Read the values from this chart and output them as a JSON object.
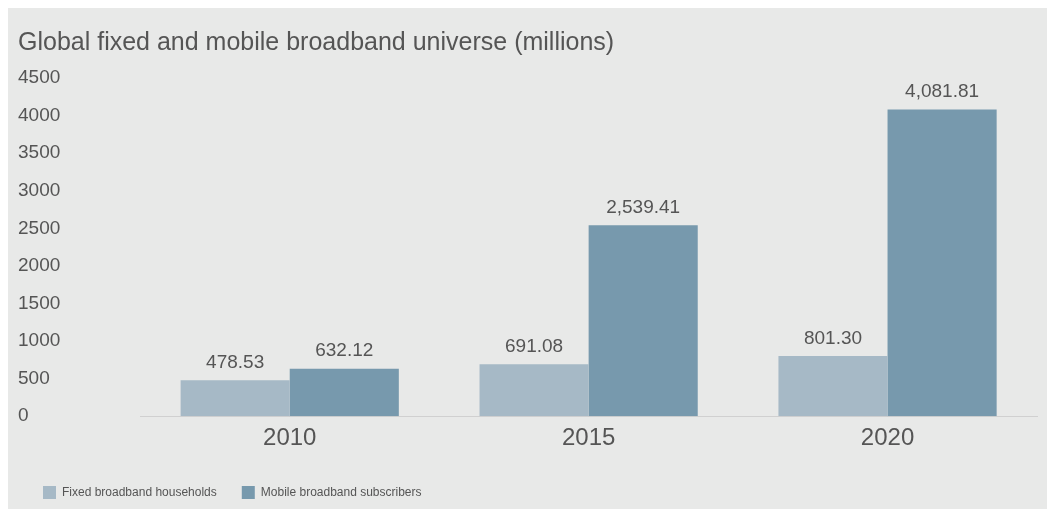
{
  "chart_data": {
    "type": "bar",
    "title": "Global fixed and mobile broadband universe (millions)",
    "categories": [
      "2010",
      "2015",
      "2020"
    ],
    "series": [
      {
        "name": "Fixed broadband households",
        "color": "#a6b9c6",
        "values": [
          478.53,
          691.08,
          801.3
        ],
        "value_labels": [
          "478.53",
          "691.08",
          "801.30"
        ]
      },
      {
        "name": "Mobile broadband subscribers",
        "color": "#7799ad",
        "values": [
          632.12,
          2539.41,
          4081.81
        ],
        "value_labels": [
          "632.12",
          "2,539.41",
          "4,081.81"
        ]
      }
    ],
    "ylim": [
      0,
      4500
    ],
    "yticks": [
      0,
      500,
      1000,
      1500,
      2000,
      2500,
      3000,
      3500,
      4000,
      4500
    ],
    "legend": "bottom left"
  }
}
